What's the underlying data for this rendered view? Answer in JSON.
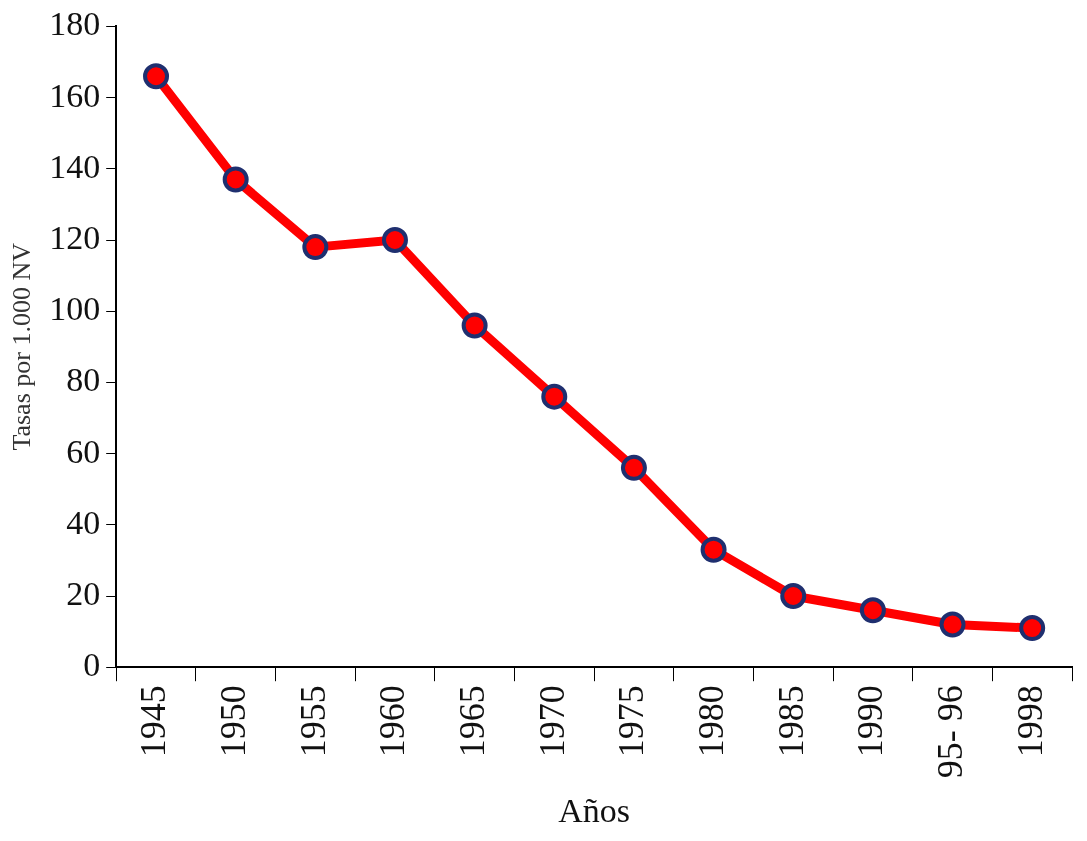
{
  "chart_data": {
    "type": "line",
    "xlabel": "Años",
    "ylabel": "Tasas por 1.000 NV",
    "categories": [
      "1945",
      "1950",
      "1955",
      "1960",
      "1965",
      "1970",
      "1975",
      "1980",
      "1985",
      "1990",
      "95- 96",
      "1998"
    ],
    "series": [
      {
        "color": "#ff0000",
        "values": [
          166,
          137,
          118,
          120,
          96,
          76,
          56,
          33,
          20,
          16,
          12,
          11
        ]
      }
    ],
    "ylim": [
      0,
      180
    ],
    "yticks": [
      0,
      20,
      40,
      60,
      80,
      100,
      120,
      140,
      160,
      180
    ],
    "grid": false,
    "legend": false,
    "marker": "circle",
    "line_style": "solid"
  }
}
